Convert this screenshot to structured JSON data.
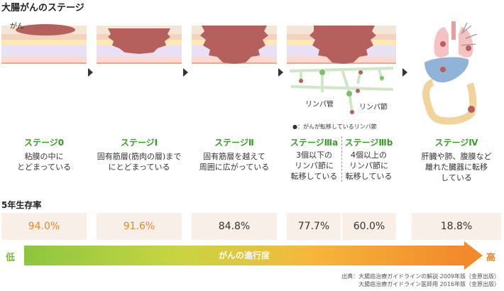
{
  "title": "大腸がんのステージ",
  "cancer_label": "がん",
  "lymph_vessel_label": "リンパ管",
  "lymph_node_label": "リンパ節",
  "metastasis_legend": "●：がんが転移しているリンパ節",
  "stages": [
    {
      "name": "ステージ0",
      "desc": "粘膜の中に\nとどまっている"
    },
    {
      "name": "ステージⅠ",
      "desc": "固有筋層(筋肉の層)まで\nにとどまっている"
    },
    {
      "name": "ステージⅡ",
      "desc": "固有筋層を越えて\n周囲に広がっている"
    },
    {
      "name": "ステージⅢa",
      "desc": "3個以下の\nリンパ節に\n転移している"
    },
    {
      "name": "ステージⅢb",
      "desc": "4個以上の\nリンパ節に\n転移している"
    },
    {
      "name": "ステージⅣ",
      "desc": "肝臓や肺、腹膜など\n離れた臓器に転移\nしている"
    }
  ],
  "survival_title": "5年生存率",
  "survival": [
    "94.0%",
    "91.6%",
    "84.8%",
    "77.7%",
    "60.0%",
    "18.8%"
  ],
  "progress_label": "がんの進行度",
  "low_label": "低",
  "high_label": "高",
  "source": "出典：大腸癌治療ガイドラインの解説 2009年版（金原出版）\n大腸癌治療ガイドライン医師用 2016年版（金原出版）",
  "colors": {
    "stage_green": "#3a9a2a",
    "tumor": "#b5605d",
    "survival_bg": "#f7efe8",
    "survival_orange": "#e08a2a"
  }
}
